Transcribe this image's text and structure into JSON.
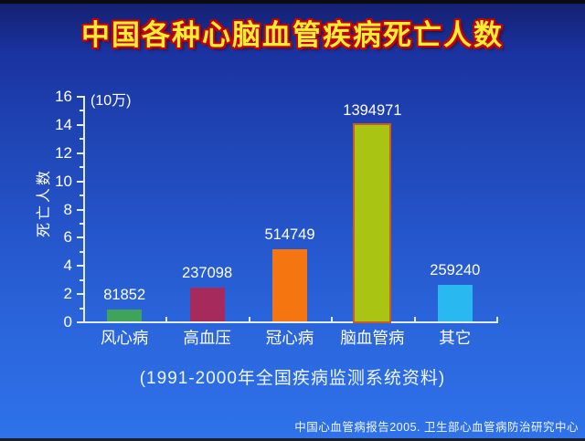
{
  "title": "中国各种心脑血管疾病死亡人数",
  "caption": "(1991-2000年全国疾病监测系统资料)",
  "footer": "中国心血管病报告2005. 卫生部心血管病防治研究中心",
  "chart_data": {
    "type": "bar",
    "categories": [
      "风心病",
      "高血压",
      "冠心病",
      "脑血管病",
      "其它"
    ],
    "values": [
      81852,
      237098,
      514749,
      1394971,
      259240
    ],
    "value_labels": [
      "81852",
      "237098",
      "514749",
      "1394971",
      "259240"
    ],
    "bar_colors": [
      "#3fa35c",
      "#a62a5c",
      "#f57511",
      "#a9c412",
      "#29b9f0"
    ],
    "bar_border_colors": [
      null,
      null,
      null,
      "#cf5a1e",
      null
    ],
    "title": "中国各种心脑血管疾病死亡人数",
    "ylabel": "死亡人数",
    "unit_label": "(10万)",
    "value_scale_per_unit": 100000,
    "ylim": [
      0,
      16
    ],
    "ytick_step": 2,
    "ytick_labels": [
      "0",
      "2",
      "4",
      "6",
      "8",
      "10",
      "12",
      "14",
      "16"
    ],
    "grid": false,
    "legend": false
  },
  "colors": {
    "background_top": "#141f6e",
    "background_bottom": "#2f72ea",
    "axis": "#e3ebf7",
    "title_text": "#f2ef35",
    "title_outline": "#c80000",
    "text": "#ffffff"
  }
}
